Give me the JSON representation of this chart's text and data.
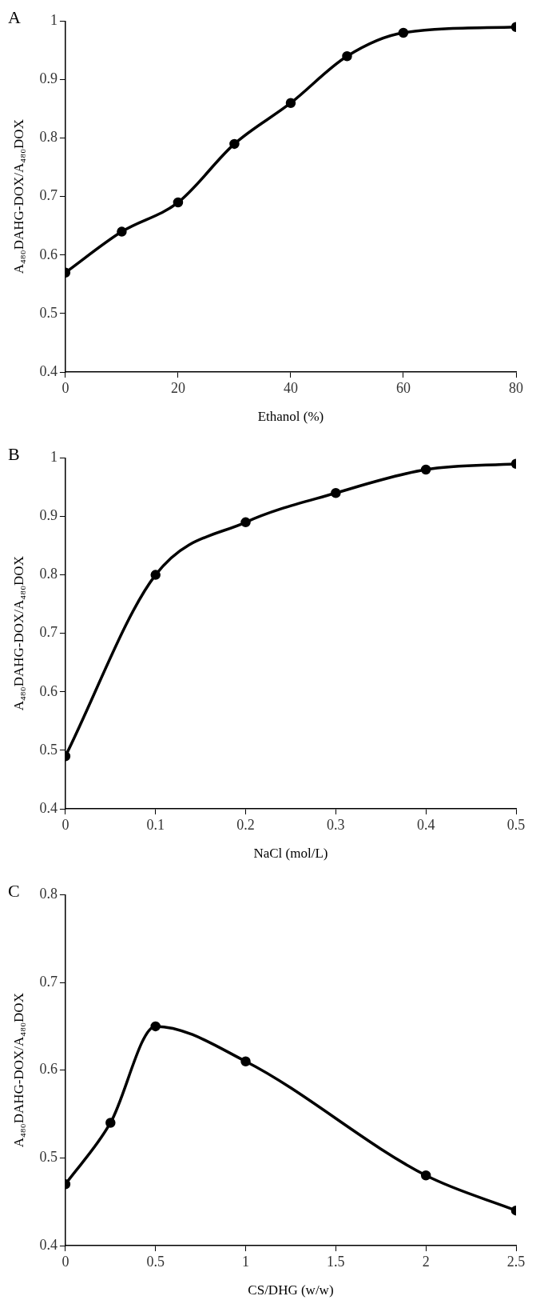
{
  "chart_data": [
    {
      "type": "line",
      "title": "A",
      "xlabel": "Ethanol (%)",
      "ylabel": "A₄₈₀DAHG-DOX/A₄₈₀DOX",
      "color": "#000000",
      "marker": "circle",
      "grid": false,
      "legend": false,
      "x": [
        0,
        10,
        20,
        30,
        40,
        50,
        60,
        80
      ],
      "values": [
        0.57,
        0.64,
        0.69,
        0.79,
        0.86,
        0.94,
        0.98,
        0.99
      ],
      "xlim": [
        0,
        80
      ],
      "xticks": [
        0,
        20,
        40,
        60,
        80
      ],
      "ylim": [
        0.4,
        1
      ],
      "yticks": [
        0.4,
        0.5,
        0.6,
        0.7,
        0.8,
        0.9,
        1
      ]
    },
    {
      "type": "line",
      "title": "B",
      "xlabel": "NaCl (mol/L)",
      "ylabel": "A₄₈₀DAHG-DOX/A₄₈₀DOX",
      "color": "#000000",
      "marker": "circle",
      "grid": false,
      "legend": false,
      "x": [
        0,
        0.1,
        0.2,
        0.3,
        0.4,
        0.5
      ],
      "values": [
        0.49,
        0.8,
        0.89,
        0.94,
        0.98,
        0.99
      ],
      "xlim": [
        0,
        0.5
      ],
      "xticks": [
        0,
        0.1,
        0.2,
        0.3,
        0.4,
        0.5
      ],
      "ylim": [
        0.4,
        1
      ],
      "yticks": [
        0.4,
        0.5,
        0.6,
        0.7,
        0.8,
        0.9,
        1
      ]
    },
    {
      "type": "line",
      "title": "C",
      "xlabel": "CS/DHG (w/w)",
      "ylabel": "A₄₈₀DAHG-DOX/A₄₈₀DOX",
      "color": "#000000",
      "marker": "circle",
      "grid": false,
      "legend": false,
      "x": [
        0,
        0.25,
        0.5,
        1,
        2,
        2.5
      ],
      "values": [
        0.47,
        0.54,
        0.65,
        0.61,
        0.48,
        0.44
      ],
      "xlim": [
        0,
        2.5
      ],
      "xticks": [
        0,
        0.5,
        1,
        1.5,
        2,
        2.5
      ],
      "ylim": [
        0.4,
        0.8
      ],
      "yticks": [
        0.4,
        0.5,
        0.6,
        0.7,
        0.8
      ]
    }
  ]
}
